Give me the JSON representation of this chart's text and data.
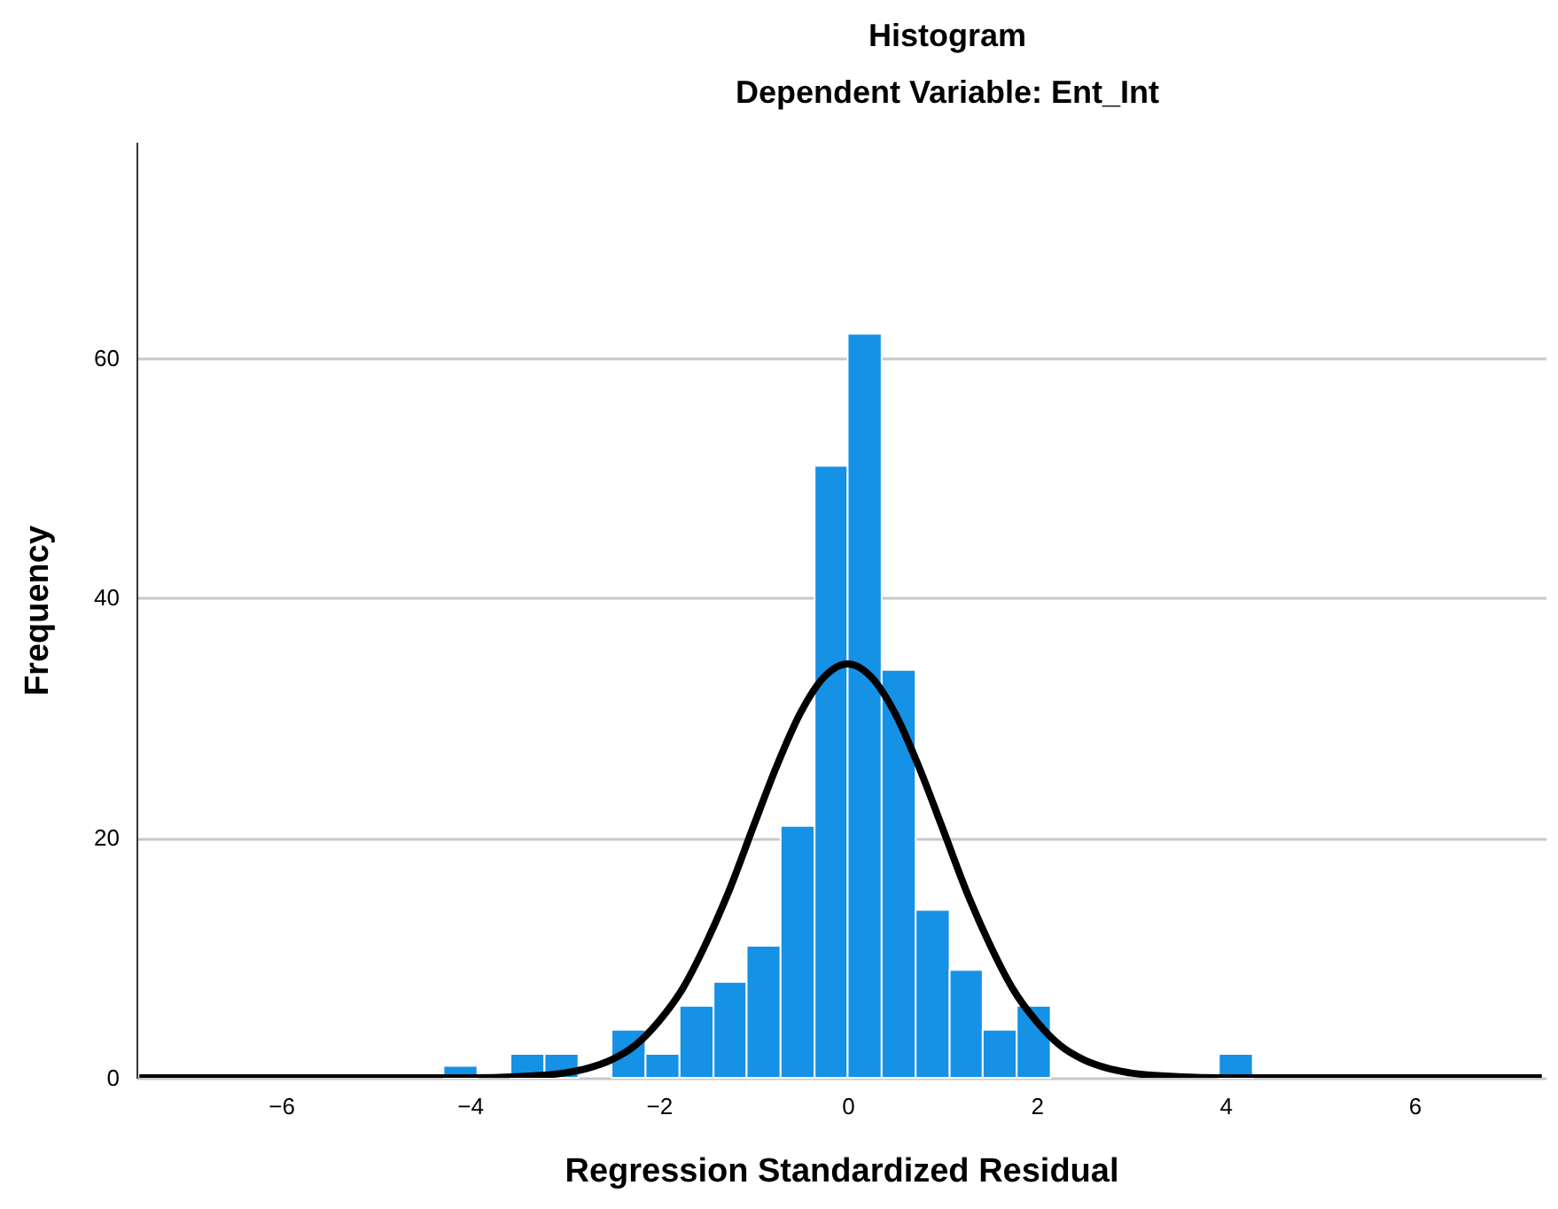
{
  "chart_data": {
    "type": "histogram",
    "title": "Histogram",
    "subtitle": "Dependent Variable: Ent_Int",
    "xlabel": "Regression Standardized Residual",
    "ylabel": "Frequency",
    "bins": [
      -4.28,
      -3.92,
      -3.57,
      -3.21,
      -2.85,
      -2.5,
      -2.14,
      -1.78,
      -1.42,
      -1.07,
      -0.71,
      -0.35,
      0.0,
      0.36,
      0.72,
      1.08,
      1.43,
      1.79,
      2.15,
      3.93,
      4.29
    ],
    "series": [
      {
        "type": "histogram",
        "color": "#1591e6",
        "values": [
          1,
          0,
          2,
          2,
          0,
          4,
          2,
          6,
          8,
          11,
          21,
          51,
          62,
          34,
          14,
          9,
          4,
          6,
          0,
          2
        ]
      },
      {
        "type": "line",
        "color": "#000000",
        "x": [
          -7.5,
          -5,
          -4,
          -3.5,
          -3,
          -2.75,
          -2.5,
          -2.25,
          -2,
          -1.75,
          -1.5,
          -1.25,
          -1,
          -0.75,
          -0.5,
          -0.25,
          0,
          0.25,
          0.5,
          0.75,
          1,
          1.25,
          1.5,
          1.75,
          2,
          2.25,
          2.5,
          2.75,
          3,
          3.5,
          4,
          5,
          7.35
        ],
        "values": [
          0,
          0,
          0,
          0.1,
          0.4,
          0.8,
          1.5,
          2.7,
          4.7,
          7.4,
          11.2,
          15.7,
          20.9,
          26,
          30.4,
          33.4,
          34.5,
          33.4,
          30.4,
          26,
          20.9,
          15.7,
          11.2,
          7.4,
          4.7,
          2.7,
          1.5,
          0.8,
          0.4,
          0.1,
          0,
          0,
          0
        ]
      }
    ],
    "xlim": [
      -7.53,
      7.39
    ],
    "xticks": [
      -6,
      -4,
      -2,
      0,
      2,
      4,
      6
    ],
    "ylim": [
      0,
      78
    ],
    "yticks": [
      0,
      20,
      40,
      60
    ],
    "grid": "y"
  }
}
